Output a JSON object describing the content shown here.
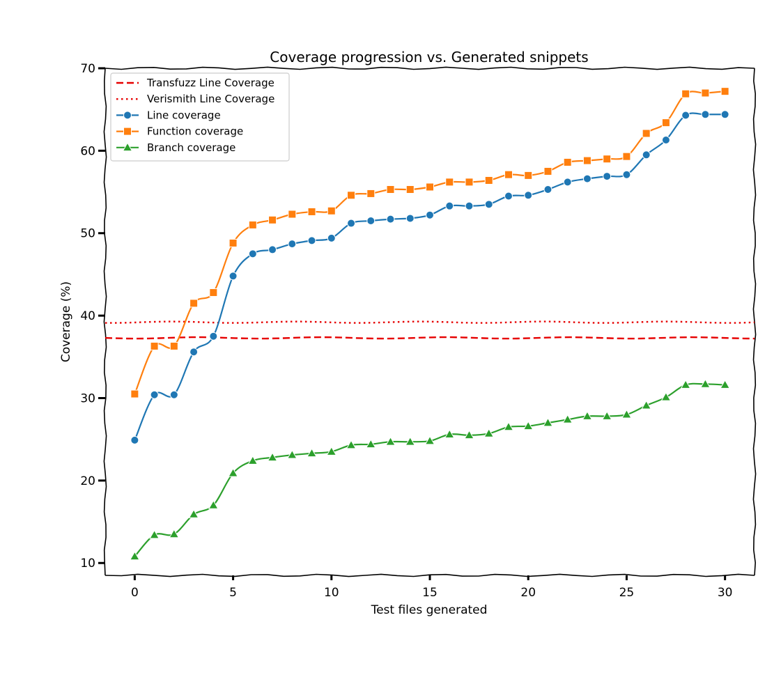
{
  "chart_data": {
    "type": "line",
    "title": "Coverage progression vs. Generated snippets",
    "xlabel": "Test files generated",
    "ylabel": "Coverage (%)",
    "xlim": [
      -1.5,
      31.5
    ],
    "ylim": [
      8.5,
      70
    ],
    "xticks": [
      0,
      5,
      10,
      15,
      20,
      25,
      30
    ],
    "yticks": [
      10,
      20,
      30,
      40,
      50,
      60,
      70
    ],
    "grid": false,
    "legend_position": "top-left",
    "x": [
      0,
      1,
      2,
      3,
      4,
      5,
      6,
      7,
      8,
      9,
      10,
      11,
      12,
      13,
      14,
      15,
      16,
      17,
      18,
      19,
      20,
      21,
      22,
      23,
      24,
      25,
      26,
      27,
      28,
      29,
      30
    ],
    "reference_lines": [
      {
        "name": "Transfuzz Line Coverage",
        "value": 37.3,
        "color": "#e60000",
        "style": "dashed"
      },
      {
        "name": "Verismith Line Coverage",
        "value": 39.2,
        "color": "#e60000",
        "style": "dotted"
      }
    ],
    "series": [
      {
        "name": "Line coverage",
        "color": "#1f77b4",
        "marker": "circle",
        "values": [
          24.9,
          30.4,
          30.4,
          35.6,
          37.5,
          44.8,
          47.5,
          48.0,
          48.7,
          49.1,
          49.4,
          51.2,
          51.5,
          51.7,
          51.8,
          52.2,
          53.3,
          53.3,
          53.5,
          54.5,
          54.6,
          55.3,
          56.2,
          56.6,
          56.9,
          57.1,
          59.5,
          61.3,
          64.3,
          64.4,
          64.4
        ]
      },
      {
        "name": "Function coverage",
        "color": "#ff7f0e",
        "marker": "square",
        "values": [
          30.5,
          36.3,
          36.3,
          41.5,
          42.8,
          48.8,
          51.0,
          51.6,
          52.3,
          52.6,
          52.7,
          54.6,
          54.8,
          55.3,
          55.3,
          55.6,
          56.2,
          56.2,
          56.4,
          57.1,
          57.0,
          57.5,
          58.6,
          58.8,
          59.0,
          59.3,
          62.1,
          63.4,
          66.9,
          67.0,
          67.2
        ]
      },
      {
        "name": "Branch coverage",
        "color": "#2ca02c",
        "marker": "triangle",
        "values": [
          10.8,
          13.4,
          13.5,
          15.9,
          17.0,
          20.9,
          22.4,
          22.8,
          23.1,
          23.3,
          23.5,
          24.3,
          24.4,
          24.7,
          24.7,
          24.8,
          25.6,
          25.5,
          25.7,
          26.5,
          26.6,
          27.0,
          27.4,
          27.8,
          27.8,
          28.0,
          29.1,
          30.1,
          31.6,
          31.7,
          31.6
        ]
      }
    ]
  }
}
